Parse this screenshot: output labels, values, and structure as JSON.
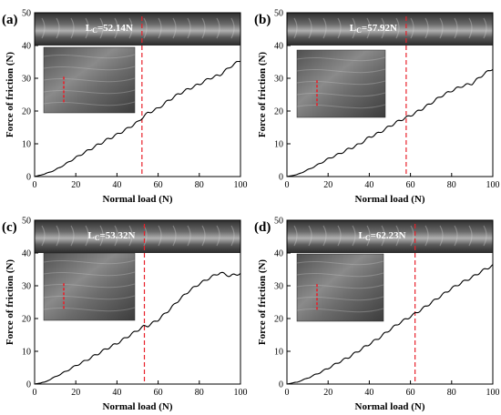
{
  "figure": {
    "panels": [
      "a",
      "b",
      "c",
      "d"
    ]
  },
  "colors": {
    "curve": "#000000",
    "critical_line": "#e8202a",
    "axis": "#000000",
    "micrograph_dark": "#3a3a3a",
    "micrograph_light": "#9a9a9a"
  },
  "chart_data": [
    {
      "type": "line",
      "panel_label": "(a)",
      "xlabel": "Normal load (N)",
      "ylabel": "Force of friction (N)",
      "xlim": [
        0,
        100
      ],
      "ylim": [
        0,
        50
      ],
      "xticks": [
        0,
        20,
        40,
        60,
        80,
        100
      ],
      "yticks": [
        0,
        10,
        20,
        30,
        40,
        50
      ],
      "critical_load_label": "L_C=52.14N",
      "critical_load": 52.14,
      "series": [
        {
          "x": [
            0,
            5,
            10,
            15,
            20,
            25,
            30,
            35,
            40,
            45,
            50,
            52,
            55,
            60,
            65,
            70,
            75,
            80,
            85,
            90,
            95,
            100
          ],
          "y": [
            0,
            0.8,
            2,
            3.8,
            5.8,
            7.6,
            9.4,
            11.2,
            12.8,
            14.6,
            16.6,
            17.8,
            19.4,
            20.8,
            23.2,
            25.2,
            26.8,
            28.2,
            30,
            31,
            33.5,
            35.5
          ]
        }
      ]
    },
    {
      "type": "line",
      "panel_label": "(b)",
      "xlabel": "Normal load (N)",
      "ylabel": "Force of friction (N)",
      "xlim": [
        0,
        100
      ],
      "ylim": [
        0,
        50
      ],
      "xticks": [
        0,
        20,
        40,
        60,
        80,
        100
      ],
      "yticks": [
        0,
        10,
        20,
        30,
        40,
        50
      ],
      "critical_load_label": "L_C=57.92N",
      "critical_load": 57.92,
      "series": [
        {
          "x": [
            0,
            5,
            10,
            15,
            20,
            25,
            30,
            35,
            40,
            45,
            50,
            55,
            58,
            60,
            65,
            70,
            75,
            80,
            85,
            90,
            95,
            100
          ],
          "y": [
            0,
            0.6,
            2,
            3.6,
            5.4,
            6.8,
            8.4,
            9.8,
            12,
            13.4,
            15.4,
            17.2,
            18,
            18.6,
            20.4,
            22.4,
            24.6,
            26.2,
            27.6,
            28.4,
            31,
            33
          ]
        }
      ]
    },
    {
      "type": "line",
      "panel_label": "(c)",
      "xlabel": "Normal load (N)",
      "ylabel": "Force of friction (N)",
      "xlim": [
        0,
        100
      ],
      "ylim": [
        0,
        50
      ],
      "xticks": [
        0,
        20,
        40,
        60,
        80,
        100
      ],
      "yticks": [
        0,
        10,
        20,
        30,
        40,
        50
      ],
      "critical_load_label": "L_C=53.32N",
      "critical_load": 53.32,
      "series": [
        {
          "x": [
            0,
            5,
            10,
            15,
            20,
            25,
            30,
            35,
            40,
            45,
            50,
            53,
            55,
            60,
            65,
            70,
            75,
            80,
            85,
            90,
            95,
            100
          ],
          "y": [
            0,
            0.6,
            2.2,
            3.8,
            5.6,
            7.2,
            9,
            10.8,
            12.4,
            14.4,
            16.4,
            17.6,
            17.8,
            19.6,
            22.4,
            25.6,
            28.4,
            30.6,
            32.4,
            34,
            33,
            33.8
          ]
        }
      ]
    },
    {
      "type": "line",
      "panel_label": "(d)",
      "xlabel": "Normal load (N)",
      "ylabel": "Force of friction (N)",
      "xlim": [
        0,
        100
      ],
      "ylim": [
        0,
        50
      ],
      "xticks": [
        0,
        20,
        40,
        60,
        80,
        100
      ],
      "yticks": [
        0,
        10,
        20,
        30,
        40,
        50
      ],
      "critical_load_label": "L_C=62.23N",
      "critical_load": 62.23,
      "series": [
        {
          "x": [
            0,
            5,
            10,
            15,
            20,
            25,
            30,
            35,
            40,
            45,
            50,
            55,
            60,
            63,
            65,
            70,
            75,
            80,
            85,
            90,
            95,
            100
          ],
          "y": [
            0,
            0.6,
            1.8,
            3.2,
            4.8,
            6.6,
            8.2,
            10.2,
            12.2,
            14.2,
            16.6,
            18.8,
            20.6,
            21.8,
            22.6,
            24.8,
            27,
            29.2,
            31,
            32.6,
            34.6,
            36.2
          ]
        }
      ]
    }
  ]
}
